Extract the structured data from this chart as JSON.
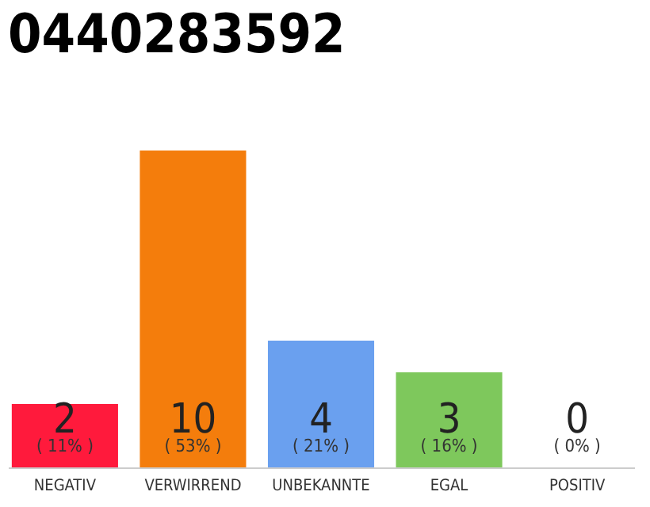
{
  "chart_data": {
    "type": "bar",
    "title": "0440283592",
    "categories": [
      "NEGATIV",
      "VERWIRREND",
      "UNBEKANNTE",
      "EGAL",
      "POSITIV"
    ],
    "values": [
      2,
      10,
      4,
      3,
      0
    ],
    "colors": [
      "#ff1a3c",
      "#f47d0c",
      "#6aa0ef",
      "#7ec85c",
      "#b0b0b0"
    ],
    "tick_labels": "x",
    "value_labels": [
      "2",
      "10",
      "4",
      "3",
      "0"
    ],
    "annotations": [
      "( 11% )",
      "( 53% )",
      "( 21% )",
      "( 16% )",
      "( 0% )"
    ]
  }
}
